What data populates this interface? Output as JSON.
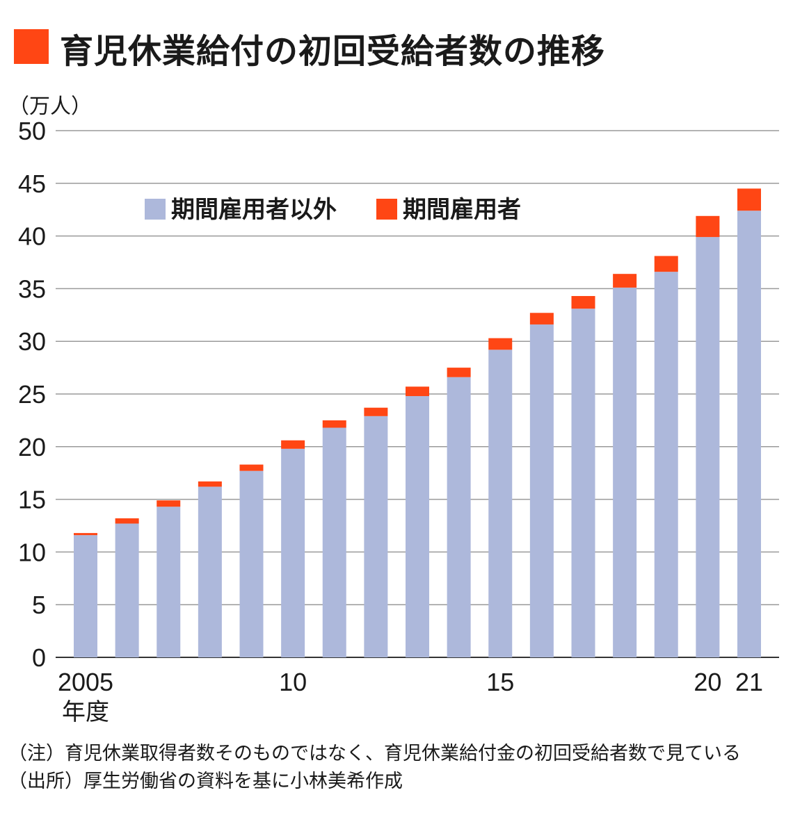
{
  "title": "育児休業給付の初回受給者数の推移",
  "unit_label": "（万人）",
  "colors": {
    "title_box": "#ff4614",
    "non_fixed_term": "#adb8db",
    "fixed_term": "#ff4614",
    "grid": "#9a9a9a",
    "axis": "#333333"
  },
  "chart_data": {
    "type": "bar",
    "stacked": true,
    "years": [
      "2005",
      "2006",
      "2007",
      "2008",
      "2009",
      "2010",
      "2011",
      "2012",
      "2013",
      "2014",
      "2015",
      "2016",
      "2017",
      "2018",
      "2019",
      "2020",
      "2021"
    ],
    "x_tick_labels": [
      {
        "index": 0,
        "label": "2005",
        "sublabel": "年度"
      },
      {
        "index": 5,
        "label": "10"
      },
      {
        "index": 10,
        "label": "15"
      },
      {
        "index": 15,
        "label": "20"
      },
      {
        "index": 16,
        "label": "21"
      }
    ],
    "series": [
      {
        "name": "期間雇用者以外",
        "color": "#adb8db",
        "values": [
          11.6,
          12.7,
          14.3,
          16.2,
          17.7,
          19.8,
          21.8,
          22.9,
          24.8,
          26.6,
          29.2,
          31.6,
          33.1,
          35.1,
          36.6,
          39.9,
          42.4
        ]
      },
      {
        "name": "期間雇用者",
        "color": "#ff4614",
        "values": [
          0.2,
          0.5,
          0.6,
          0.5,
          0.6,
          0.8,
          0.7,
          0.8,
          0.9,
          0.9,
          1.1,
          1.1,
          1.2,
          1.3,
          1.5,
          2.0,
          2.1
        ]
      }
    ],
    "ylim": [
      0,
      50
    ],
    "yticks": [
      0,
      5,
      10,
      15,
      20,
      25,
      30,
      35,
      40,
      45,
      50
    ],
    "grid": true,
    "legend_position": "top-left"
  },
  "notes": [
    "（注）育児休業取得者数そのものではなく、育児休業給付金の初回受給者数で見ている",
    "（出所）厚生労働省の資料を基に小林美希作成"
  ]
}
